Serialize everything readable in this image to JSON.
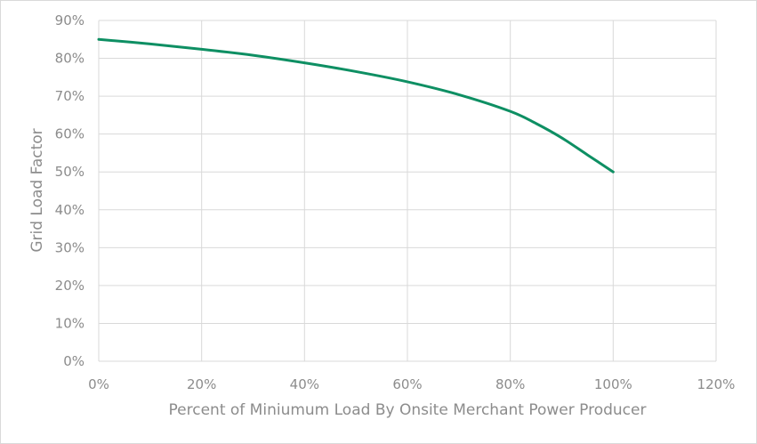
{
  "chart_data": {
    "type": "line",
    "xlabel": "Percent of Miniumum Load By Onsite Merchant Power Producer",
    "ylabel": "Grid Load Factor",
    "xlim": [
      0,
      1.2
    ],
    "ylim": [
      0,
      0.9
    ],
    "x_ticks": [
      0,
      0.2,
      0.4,
      0.6,
      0.8,
      1.0,
      1.2
    ],
    "x_tick_labels": [
      "0%",
      "20%",
      "40%",
      "60%",
      "80%",
      "100%",
      "120%"
    ],
    "y_ticks": [
      0,
      0.1,
      0.2,
      0.3,
      0.4,
      0.5,
      0.6,
      0.7,
      0.8,
      0.9
    ],
    "y_tick_labels": [
      "0%",
      "10%",
      "20%",
      "30%",
      "40%",
      "50%",
      "60%",
      "70%",
      "80%",
      "90%"
    ],
    "grid": true,
    "line_color": "#0e8f63",
    "grid_color": "#d9d9d9",
    "text_color": "#8c8c8c",
    "series": [
      {
        "x": [
          0,
          0.1,
          0.2,
          0.3,
          0.4,
          0.5,
          0.6,
          0.7,
          0.8,
          0.85,
          0.9,
          0.95,
          1.0
        ],
        "y": [
          0.85,
          0.838,
          0.824,
          0.808,
          0.788,
          0.765,
          0.738,
          0.704,
          0.66,
          0.628,
          0.59,
          0.545,
          0.5
        ]
      }
    ]
  }
}
